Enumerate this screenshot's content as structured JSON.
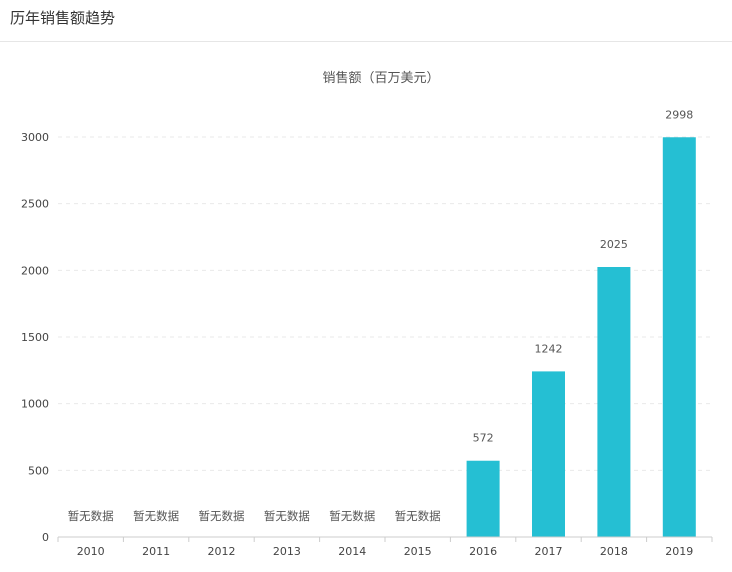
{
  "header": {
    "title": "历年销售额趋势"
  },
  "chart_data": {
    "type": "bar",
    "title": "销售额（百万美元）",
    "xlabel": "",
    "ylabel": "",
    "categories": [
      "2010",
      "2011",
      "2012",
      "2013",
      "2014",
      "2015",
      "2016",
      "2017",
      "2018",
      "2019"
    ],
    "values": [
      null,
      null,
      null,
      null,
      null,
      null,
      572,
      1242,
      2025,
      2998
    ],
    "no_data_text": "暂无数据",
    "ylim": [
      0,
      3000
    ],
    "yticks": [
      "0",
      "500",
      "1000",
      "1500",
      "2000",
      "2500",
      "3000"
    ],
    "grid": true,
    "bar_color": "#25bfd3"
  }
}
